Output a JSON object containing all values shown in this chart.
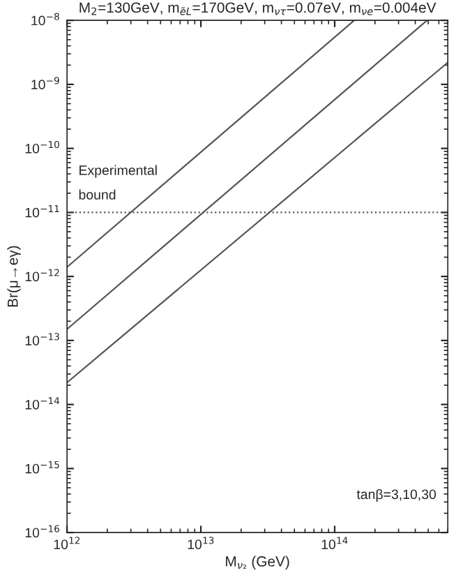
{
  "chart_data": {
    "type": "line",
    "title": "M$_{2}$=130GeV, m$_{ẽL}$=170GeV, m$_{ντ}$=0.07eV, m$_{νe}$=0.004eV",
    "xlabel": "M$_{ν₂}$ (GeV)",
    "ylabel": "Br(μ→eγ)",
    "log": "xy",
    "grid": false,
    "line_style": "solid",
    "series": [
      {
        "color": "#555555",
        "x": [
          1000000000000.0,
          140000000000000.0
        ],
        "values": [
          1.4e-12,
          1e-08
        ]
      },
      {
        "color": "#555555",
        "x": [
          1000000000000.0,
          490000000000000.0
        ],
        "values": [
          1.5e-13,
          1e-08
        ]
      },
      {
        "color": "#555555",
        "x": [
          1000000000000.0,
          700000000000000.0
        ],
        "values": [
          2.2e-14,
          2.2e-09
        ]
      }
    ],
    "xlim": [
      1000000000000.0,
      700000000000000.0
    ],
    "ylim": [
      1e-16,
      1e-08
    ],
    "xticks": [
      {
        "value": 1000000000000.0,
        "label": "10$^{12}$"
      },
      {
        "value": 10000000000000.0,
        "label": "10$^{13}$"
      },
      {
        "value": 100000000000000.0,
        "label": "10$^{14}$"
      }
    ],
    "yticks": [
      {
        "value": 1e-16,
        "label": "10$^{−16}$"
      },
      {
        "value": 1e-15,
        "label": "10$^{−15}$"
      },
      {
        "value": 1e-14,
        "label": "10$^{−14}$"
      },
      {
        "value": 1e-13,
        "label": "10$^{−13}$"
      },
      {
        "value": 1e-12,
        "label": "10$^{−12}$"
      },
      {
        "value": 1e-11,
        "label": "10$^{−11}$"
      },
      {
        "value": 1e-10,
        "label": "10$^{−10}$"
      },
      {
        "value": 1e-09,
        "label": "10$^{−9}$"
      },
      {
        "value": 1e-08,
        "label": "10$^{−8}$"
      }
    ],
    "ref_lines": [
      {
        "axis": "y",
        "value": 1e-11,
        "line_style": "dotted",
        "color": "#555555"
      }
    ],
    "annotations": [
      "Experimental\nbound",
      "tanβ=3,10,30"
    ]
  }
}
